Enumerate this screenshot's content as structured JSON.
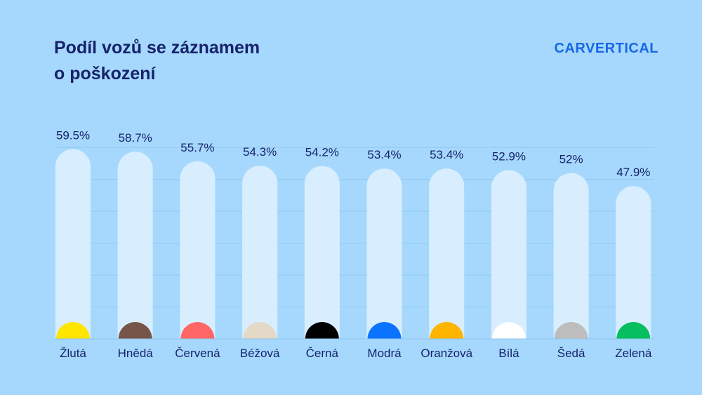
{
  "title": {
    "line1": "Podíl vozů se záznamem",
    "line2": "o poškození"
  },
  "brand": {
    "logo_text": "CARVERTICAL",
    "color": "#1768e6"
  },
  "colors": {
    "background": "#a6d8fe",
    "bar_track": "#d8eefe",
    "text_dark": "#16226a",
    "gridline": "#8fc4ea"
  },
  "chart_data": {
    "type": "bar",
    "title": "Podíl vozů se záznamem o poškození",
    "categories": [
      "Žlutá",
      "Hnědá",
      "Červená",
      "Béžová",
      "Černá",
      "Modrá",
      "Oranžová",
      "Bílá",
      "Šedá",
      "Zelená"
    ],
    "values": [
      59.5,
      58.7,
      55.7,
      54.3,
      54.2,
      53.4,
      53.4,
      52.9,
      52,
      47.9
    ],
    "value_labels": [
      "59.5%",
      "58.7%",
      "55.7%",
      "54.3%",
      "54.2%",
      "53.4%",
      "53.4%",
      "52.9%",
      "52%",
      "47.9%"
    ],
    "marker_colors": [
      "#ffe500",
      "#765548",
      "#ff6665",
      "#e3d9c6",
      "#000000",
      "#0a73ff",
      "#ffb400",
      "#ffffff",
      "#bdbdbd",
      "#07bf5e"
    ],
    "xlabel": "",
    "ylabel": "",
    "ylim": [
      0,
      60
    ],
    "grid": true,
    "legend": "none"
  }
}
